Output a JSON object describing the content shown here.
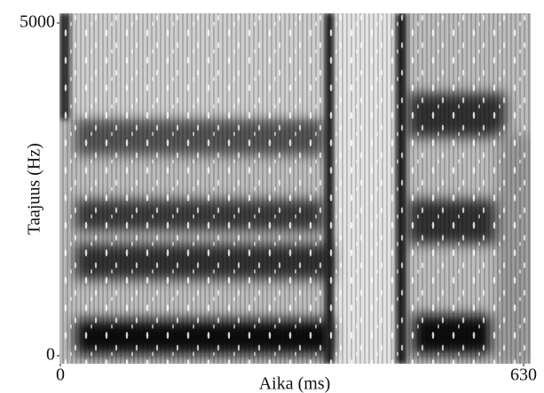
{
  "chart_data": {
    "type": "spectrogram",
    "x_label": "Aika (ms)",
    "y_label": "Taajuus (Hz)",
    "xlim": [
      0,
      630
    ],
    "xticks": [
      0,
      630
    ],
    "ylim": [
      0,
      5000
    ],
    "yticks": [
      0,
      5000
    ]
  }
}
